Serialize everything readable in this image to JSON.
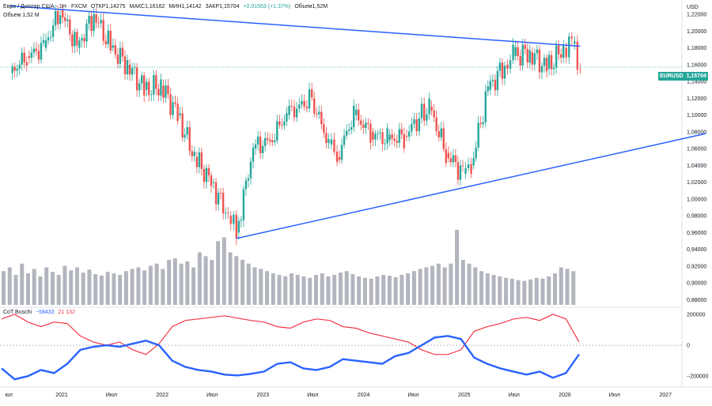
{
  "legend": {
    "symbol": "Евро / Доллар США · 1Н · FXCM",
    "open": "ОТКР1,14275",
    "high": "МАКС1,16162",
    "low": "МИН1,14142",
    "close": "ЗАКР1,15704",
    "change": "+0,01563 (+1,37%)",
    "volume": "Объем1,52М"
  },
  "volume_legend": "Объем  1,52 М",
  "price_axis": {
    "currency": "USD",
    "symbol_badge": "EURUSD",
    "last_price_badge": "1,15704"
  },
  "cot_legend": {
    "title": "CoT Buschi",
    "blue_value": "−58433",
    "red_value": "21 132"
  },
  "colors": {
    "up": "#26a69a",
    "down": "#ef5350",
    "trend_line": "#2962ff",
    "volume": "#b2b5be",
    "cot_blue": "#2962ff",
    "cot_red": "#f23645",
    "last_price_line": "#26a69a"
  },
  "chart_data": [
    {
      "type": "candlestick",
      "title": "Евро / Доллар США · 1Н · FXCM",
      "y_ticks": [
        "1,22000",
        "1,20000",
        "1,18000",
        "1,16000",
        "1,14000",
        "1,12000",
        "1,10000",
        "1,08000",
        "1,06000",
        "1,04000",
        "1,02000",
        "1,00000",
        "0,98000",
        "0,96000",
        "0,94000",
        "0,92000",
        "0,90000",
        "0,88000"
      ],
      "ylim": [
        0.872,
        1.237
      ],
      "x_ticks": [
        "юл",
        "2021",
        "Июл",
        "2022",
        "Июл",
        "2023",
        "Июл",
        "2024",
        "Июл",
        "2025",
        "Июл",
        "2026",
        "Июл",
        "2027"
      ],
      "close_path": [
        [
          "2020-07",
          1.15
        ],
        [
          "2020-09",
          1.17
        ],
        [
          "2020-11",
          1.18
        ],
        [
          "2021-01",
          1.225
        ],
        [
          "2021-03",
          1.18
        ],
        [
          "2021-05",
          1.22
        ],
        [
          "2021-07",
          1.18
        ],
        [
          "2021-09",
          1.16
        ],
        [
          "2021-11",
          1.13
        ],
        [
          "2022-01",
          1.135
        ],
        [
          "2022-03",
          1.1
        ],
        [
          "2022-05",
          1.05
        ],
        [
          "2022-07",
          1.02
        ],
        [
          "2022-09",
          0.98
        ],
        [
          "2022-10",
          0.96
        ],
        [
          "2022-12",
          1.06
        ],
        [
          "2023-02",
          1.07
        ],
        [
          "2023-04",
          1.1
        ],
        [
          "2023-07",
          1.12
        ],
        [
          "2023-09",
          1.065
        ],
        [
          "2023-10",
          1.05
        ],
        [
          "2023-12",
          1.1
        ],
        [
          "2024-02",
          1.08
        ],
        [
          "2024-04",
          1.07
        ],
        [
          "2024-06",
          1.075
        ],
        [
          "2024-09",
          1.11
        ],
        [
          "2024-11",
          1.055
        ],
        [
          "2025-01",
          1.03
        ],
        [
          "2025-02",
          1.04
        ],
        [
          "2025-04",
          1.13
        ],
        [
          "2025-06",
          1.16
        ],
        [
          "2025-07",
          1.17
        ],
        [
          "2025-09",
          1.175
        ],
        [
          "2025-11",
          1.155
        ],
        [
          "2026-01",
          1.18
        ],
        [
          "2026-02",
          1.185
        ],
        [
          "2026-03",
          1.157
        ]
      ],
      "trend_lines": [
        {
          "from": [
            "2020-07",
            1.23
          ],
          "to": [
            "2026-03",
            1.182
          ]
        },
        {
          "from": [
            "2022-10",
            0.953
          ],
          "to": [
            "2027-06",
            1.078
          ]
        }
      ],
      "last_price": 1.15704
    },
    {
      "type": "bar",
      "title": "Объем",
      "relative_volume": [
        0.45,
        0.5,
        0.4,
        0.55,
        0.42,
        0.48,
        0.38,
        0.5,
        0.44,
        0.4,
        0.52,
        0.46,
        0.5,
        0.43,
        0.47,
        0.41,
        0.39,
        0.44,
        0.42,
        0.4,
        0.45,
        0.48,
        0.5,
        0.46,
        0.52,
        0.55,
        0.48,
        0.6,
        0.62,
        0.55,
        0.58,
        0.5,
        0.7,
        0.65,
        0.6,
        0.85,
        0.9,
        0.7,
        0.65,
        0.6,
        0.55,
        0.5,
        0.48,
        0.45,
        0.42,
        0.4,
        0.38,
        0.42,
        0.4,
        0.38,
        0.36,
        0.4,
        0.42,
        0.38,
        0.4,
        0.43,
        0.45,
        0.41,
        0.38,
        0.36,
        0.35,
        0.38,
        0.4,
        0.39,
        0.37,
        0.4,
        0.42,
        0.45,
        0.48,
        0.5,
        0.52,
        0.55,
        0.5,
        0.55,
        1.0,
        0.6,
        0.55,
        0.5,
        0.45,
        0.42,
        0.4,
        0.38,
        0.36,
        0.35,
        0.33,
        0.32,
        0.34,
        0.36,
        0.35,
        0.38,
        0.42,
        0.5,
        0.48,
        0.45
      ]
    },
    {
      "type": "line",
      "title": "CoT Buschi",
      "y_ticks": [
        "200000",
        "0",
        "−200000"
      ],
      "ylim": [
        -260000,
        230000
      ],
      "series": [
        {
          "name": "−58433",
          "values": [
            -150000,
            -220000,
            -200000,
            -160000,
            -180000,
            -120000,
            -30000,
            -10000,
            0,
            -10000,
            10000,
            30000,
            0,
            -100000,
            -140000,
            -160000,
            -170000,
            -190000,
            -195000,
            -185000,
            -170000,
            -120000,
            -110000,
            -150000,
            -160000,
            -140000,
            -90000,
            -100000,
            -110000,
            -120000,
            -70000,
            -50000,
            0,
            50000,
            60000,
            40000,
            -80000,
            -120000,
            -150000,
            -170000,
            -190000,
            -170000,
            -210000,
            -180000,
            -58433
          ]
        },
        {
          "name": "21 132",
          "values": [
            170000,
            200000,
            150000,
            120000,
            150000,
            140000,
            60000,
            20000,
            0,
            20000,
            -30000,
            -60000,
            10000,
            120000,
            160000,
            170000,
            180000,
            190000,
            175000,
            160000,
            150000,
            120000,
            110000,
            150000,
            170000,
            160000,
            120000,
            110000,
            80000,
            60000,
            40000,
            20000,
            -30000,
            -60000,
            -60000,
            -30000,
            90000,
            120000,
            140000,
            170000,
            180000,
            160000,
            200000,
            170000,
            21132
          ]
        }
      ]
    }
  ]
}
